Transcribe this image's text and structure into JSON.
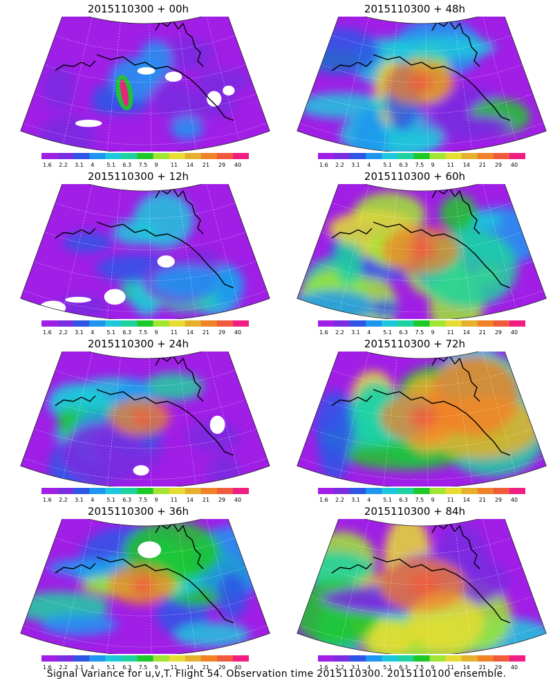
{
  "figure": {
    "caption": "Signal Variance for u,v,T. Flight 54. Observation time 2015110300. 2015110100 ensemble."
  },
  "panels": [
    {
      "title": "2015110300 + 00h",
      "lead_hours": 0,
      "intensity": 0.05
    },
    {
      "title": "2015110300 + 48h",
      "lead_hours": 48,
      "intensity": 0.55
    },
    {
      "title": "2015110300 + 12h",
      "lead_hours": 12,
      "intensity": 0.25
    },
    {
      "title": "2015110300 + 60h",
      "lead_hours": 60,
      "intensity": 0.65
    },
    {
      "title": "2015110300 + 24h",
      "lead_hours": 24,
      "intensity": 0.35
    },
    {
      "title": "2015110300 + 72h",
      "lead_hours": 72,
      "intensity": 0.72
    },
    {
      "title": "2015110300 + 36h",
      "lead_hours": 36,
      "intensity": 0.45
    },
    {
      "title": "2015110300 + 84h",
      "lead_hours": 84,
      "intensity": 0.82
    }
  ],
  "colorbar": {
    "labels": [
      "1.6",
      "2.2",
      "3.1",
      "4",
      "5.1",
      "6.3",
      "7.5",
      "9",
      "11",
      "14",
      "21",
      "29",
      "40"
    ],
    "colors": [
      "#a01ee6",
      "#7a2ce0",
      "#2f55e6",
      "#1e96f0",
      "#1ec8dc",
      "#1ed2a0",
      "#1ec828",
      "#a0e632",
      "#e6dc32",
      "#e6af2d",
      "#f08228",
      "#f05a3c",
      "#f01e82"
    ]
  }
}
